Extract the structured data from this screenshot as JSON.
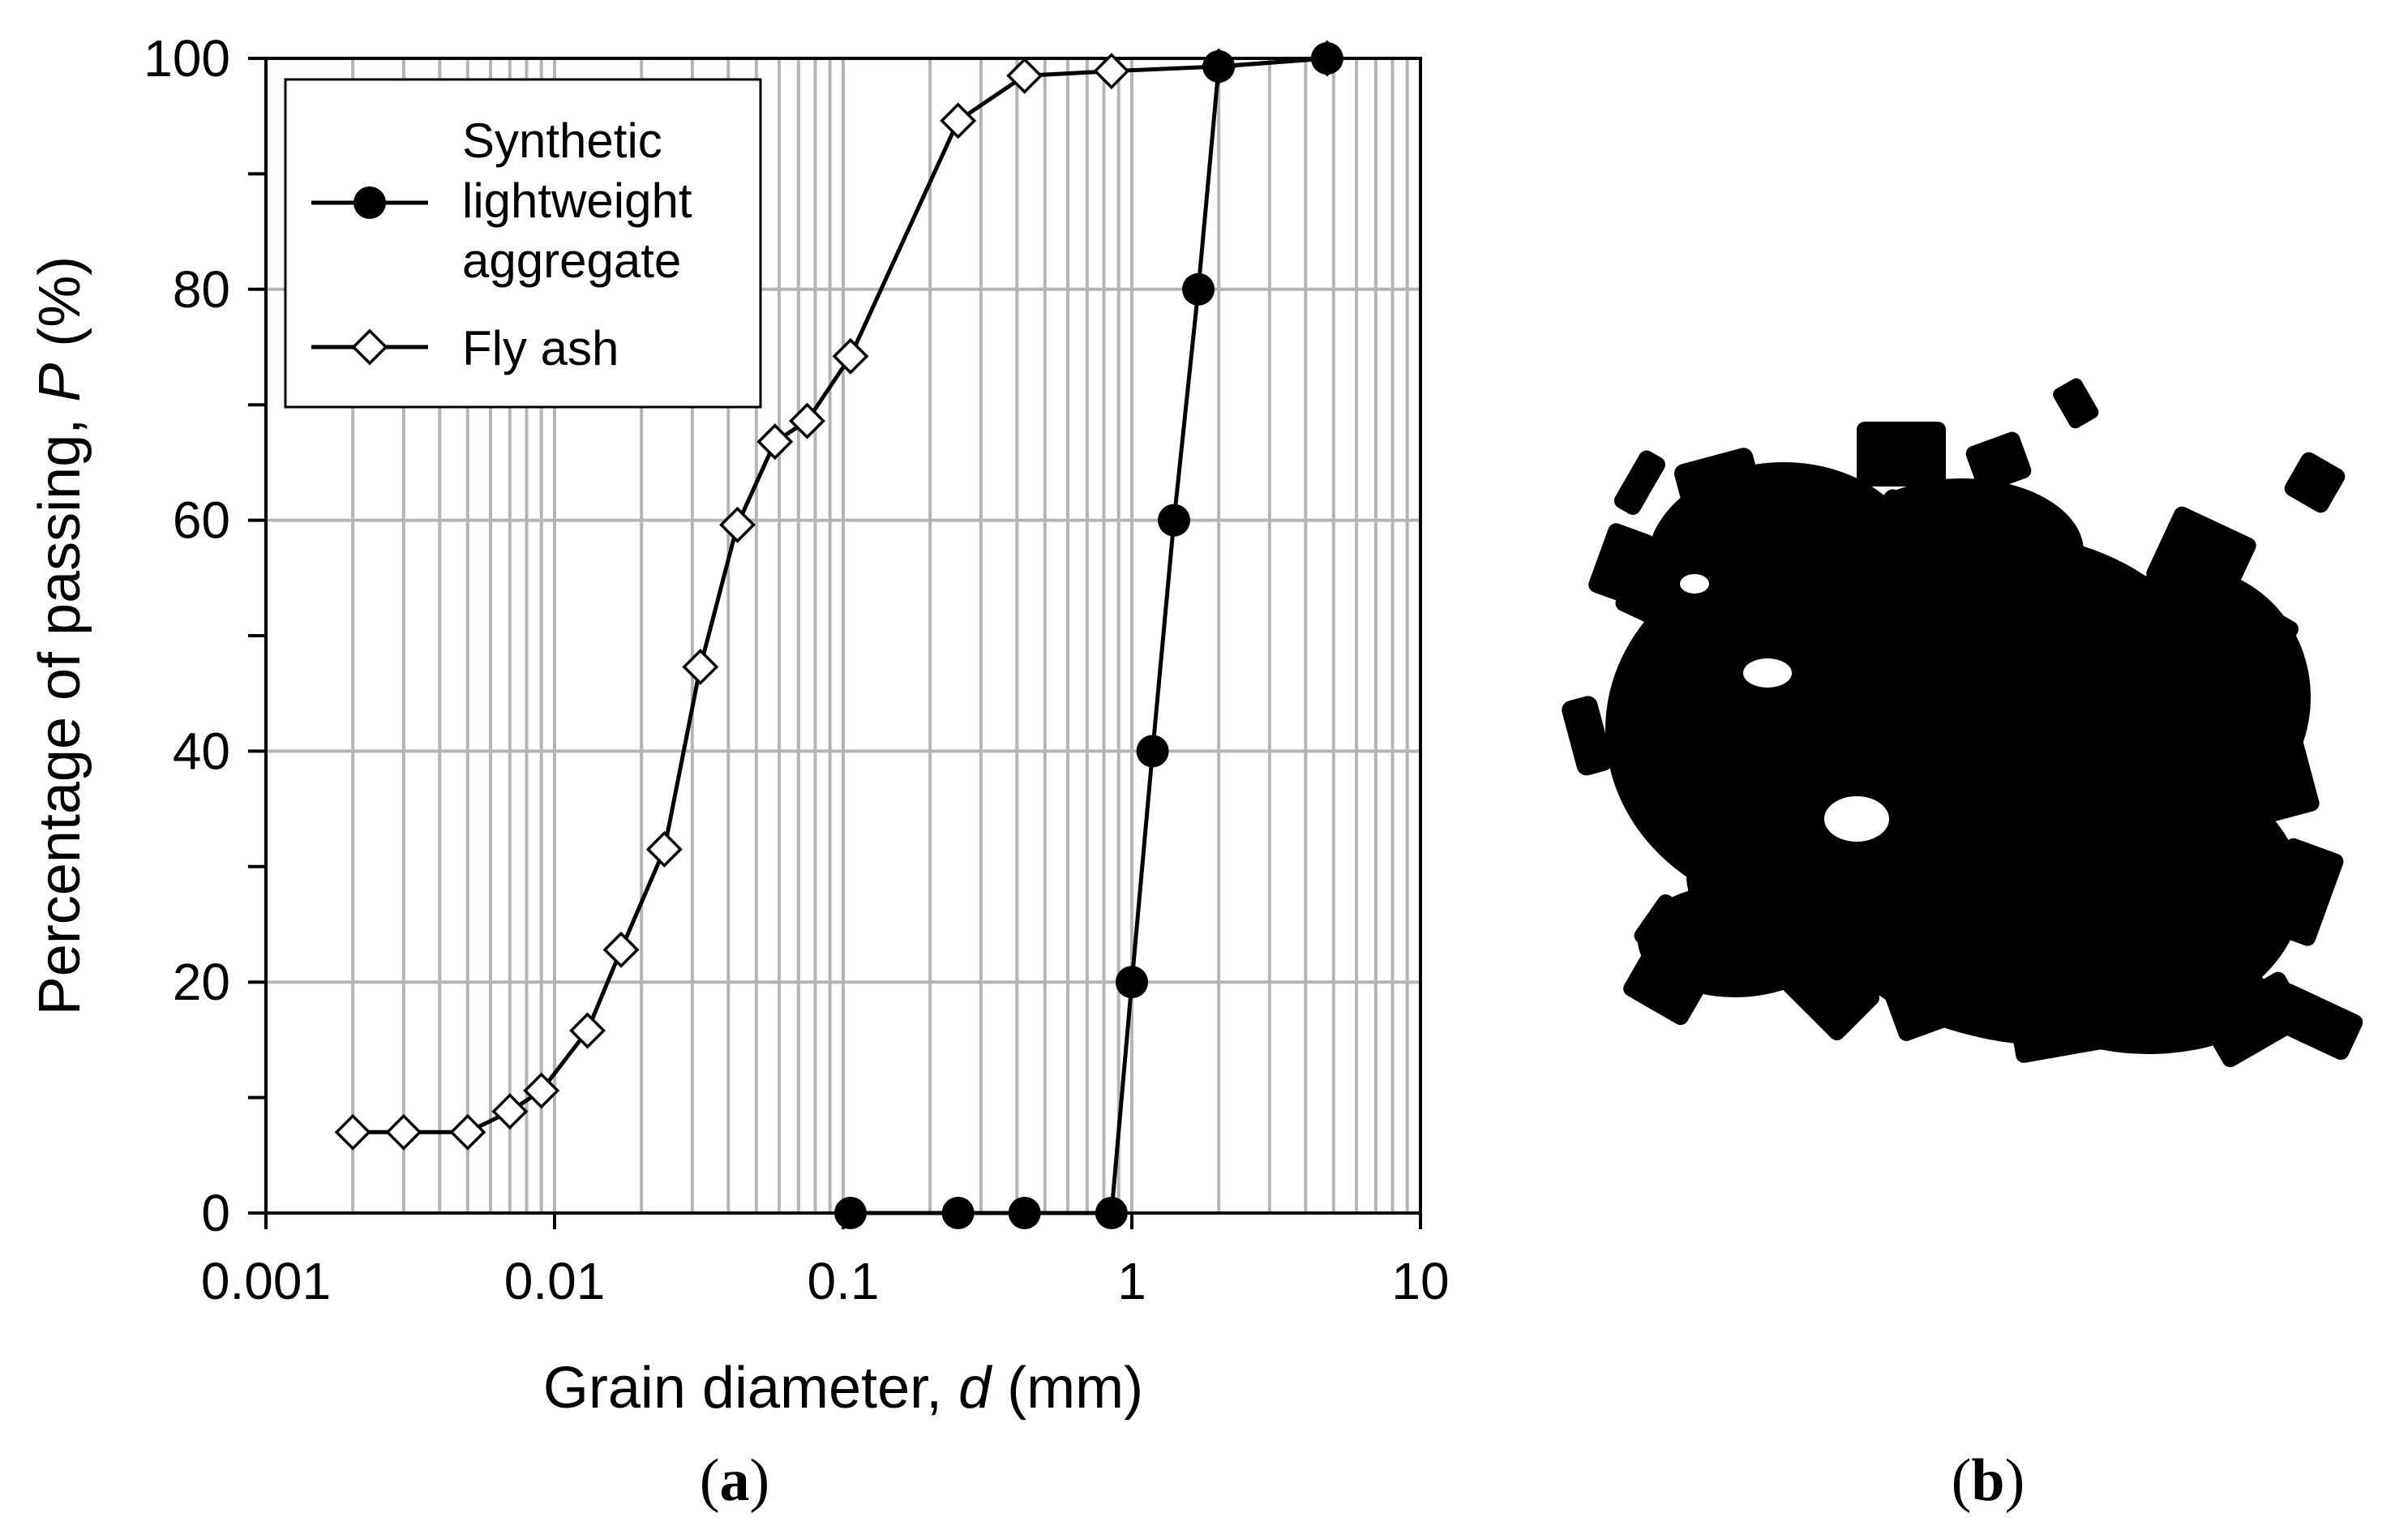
{
  "chart_data": {
    "type": "scatter",
    "xscale": "log",
    "xlim": [
      0.001,
      10
    ],
    "ylim": [
      0,
      100
    ],
    "xticks": [
      0.001,
      0.01,
      0.1,
      1,
      10
    ],
    "xtick_labels": [
      "0.001",
      "0.01",
      "0.1",
      "1",
      "10"
    ],
    "yticks": [
      0,
      20,
      40,
      60,
      80,
      100
    ],
    "ytick_labels": [
      "0",
      "20",
      "40",
      "60",
      "80",
      "100"
    ],
    "xlabel_parts": [
      "Grain diameter, ",
      "d",
      " (mm)"
    ],
    "ylabel_parts": [
      "Percentage of passing, ",
      "P",
      " (%)"
    ],
    "grid": true,
    "legend_position": "top-left",
    "series": [
      {
        "name_lines": [
          "Synthetic",
          "lightweight",
          "aggregate"
        ],
        "marker": "circle-filled",
        "color": "#000000",
        "x": [
          0.106,
          0.25,
          0.425,
          0.85,
          1.0,
          1.18,
          1.4,
          1.7,
          2.0,
          4.75
        ],
        "y": [
          0,
          0,
          0,
          0,
          20,
          40,
          60,
          80,
          99.3,
          100
        ]
      },
      {
        "name_lines": [
          "Fly ash"
        ],
        "marker": "diamond-open",
        "color": "#000000",
        "x": [
          0.002,
          0.003,
          0.005,
          0.007,
          0.009,
          0.013,
          0.017,
          0.024,
          0.032,
          0.043,
          0.058,
          0.075,
          0.106,
          0.25,
          0.425,
          0.85,
          2.0,
          4.75
        ],
        "y": [
          7,
          7,
          7,
          8.8,
          10.6,
          15.8,
          22.8,
          31.5,
          47.3,
          59.6,
          66.8,
          68.6,
          74.2,
          94.6,
          98.5,
          98.9,
          99.3,
          100
        ]
      }
    ]
  },
  "panel_labels": {
    "a": {
      "open": "(",
      "letter": "a",
      "close": ")"
    },
    "b": {
      "open": "(",
      "letter": "b",
      "close": ")"
    }
  },
  "image_b": {
    "description_icon": "aggregate-particle-silhouette"
  }
}
